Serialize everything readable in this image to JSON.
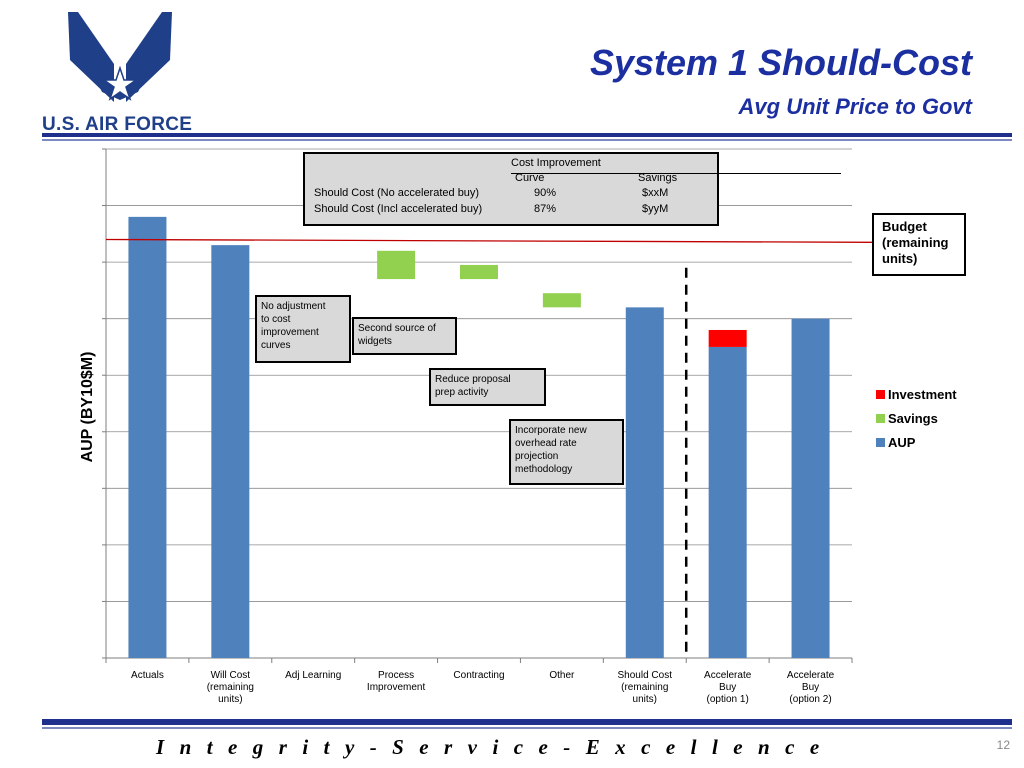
{
  "header": {
    "logo_text": "U.S. AIR FORCE",
    "title": "System 1 Should-Cost",
    "subtitle": "Avg Unit Price to Govt"
  },
  "footer": {
    "motto": "I n t e g r i t y  -  S e r v i c e  -  E x c e l l e n c e",
    "page_number": "12"
  },
  "colors": {
    "navy": "#1e2f8c",
    "aup": "#4f81bd",
    "savings": "#92d050",
    "investment": "#ff0000",
    "budget_line": "#c00000"
  },
  "cib_table": {
    "header_line1": "Cost Improvement",
    "header_curve": "Curve",
    "header_savings": "Savings",
    "rows": [
      {
        "label": "Should Cost (No accelerated buy)",
        "curve": "90%",
        "savings": "$xxM"
      },
      {
        "label": "Should Cost (Incl accelerated buy)",
        "curve": "87%",
        "savings": "$yyM"
      }
    ]
  },
  "budget_box": {
    "text_lines": [
      "Budget",
      "(remaining",
      "units)"
    ]
  },
  "callouts": [
    {
      "text_lines": [
        "No adjustment",
        "to cost",
        "improvement",
        "curves"
      ]
    },
    {
      "text_lines": [
        "Second source of",
        "widgets"
      ]
    },
    {
      "text_lines": [
        "Reduce proposal",
        "prep activity"
      ]
    },
    {
      "text_lines": [
        "Incorporate new",
        "overhead rate",
        "projection",
        "methodology"
      ]
    }
  ],
  "chart_data": {
    "type": "bar",
    "stacked": true,
    "ylabel": "AUP (BY10$M)",
    "ylim": [
      0,
      9
    ],
    "y_tick_labels_shown": false,
    "grid": true,
    "legend": {
      "position": "right",
      "entries": [
        "Investment",
        "Savings",
        "AUP"
      ]
    },
    "categories": [
      [
        "Actuals"
      ],
      [
        "Will Cost",
        "(remaining",
        "units)"
      ],
      [
        "Adj Learning"
      ],
      [
        "Process",
        "Improvement"
      ],
      [
        "Contracting"
      ],
      [
        "Other"
      ],
      [
        "Should Cost",
        "(remaining",
        "units)"
      ],
      [
        "Accelerate",
        "Buy",
        "(option 1)"
      ],
      [
        "Accelerate",
        "Buy",
        "(option 2)"
      ]
    ],
    "series": [
      {
        "name": "AUP",
        "kind": "base",
        "values": [
          7.8,
          7.3,
          null,
          null,
          null,
          null,
          6.2,
          5.5,
          6.0
        ]
      },
      {
        "name": "Savings",
        "kind": "float",
        "ranges": [
          null,
          null,
          null,
          [
            6.7,
            7.2
          ],
          [
            6.7,
            6.95
          ],
          [
            6.2,
            6.45
          ],
          null,
          null,
          null
        ]
      },
      {
        "name": "Investment",
        "kind": "float",
        "ranges": [
          null,
          null,
          null,
          null,
          null,
          null,
          null,
          [
            5.5,
            5.8
          ],
          null
        ]
      }
    ],
    "budget_line": {
      "label": "Budget (remaining units)",
      "y_start": 7.4,
      "y_end": 7.35
    },
    "divider_after_category_index": 6
  }
}
